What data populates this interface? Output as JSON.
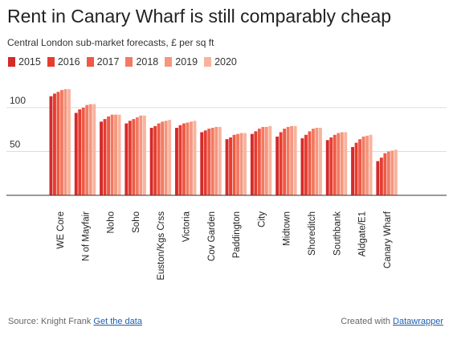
{
  "title": "Rent in Canary Wharf is still comparably cheap",
  "subtitle": "Central London sub-market forecasts, £ per sq ft",
  "legend": [
    {
      "label": "2015",
      "color": "#d42a2a"
    },
    {
      "label": "2016",
      "color": "#e63c30"
    },
    {
      "label": "2017",
      "color": "#ee5a45"
    },
    {
      "label": "2018",
      "color": "#f27a63"
    },
    {
      "label": "2019",
      "color": "#f5977f"
    },
    {
      "label": "2020",
      "color": "#f8b39e"
    }
  ],
  "footer": {
    "source_prefix": "Source: Knight Frank",
    "source_link": "Get the data",
    "credit_prefix": "Created with",
    "credit_link": "Datawrapper"
  },
  "chart_data": {
    "type": "bar",
    "categories": [
      "WE Core",
      "N of Mayfair",
      "Noho",
      "Soho",
      "Euston/Kgs Crss",
      "Victoria",
      "Cov Garden",
      "Paddington",
      "City",
      "Midtown",
      "Shoreditch",
      "Southbank",
      "Aldgate/E1",
      "Canary Wharf"
    ],
    "series": [
      {
        "name": "2015",
        "values": [
          113,
          94,
          84,
          82,
          77,
          77,
          72,
          64,
          70,
          67,
          65,
          63,
          55,
          39
        ]
      },
      {
        "name": "2016",
        "values": [
          116,
          98,
          87,
          85,
          79,
          80,
          74,
          66,
          73,
          72,
          69,
          66,
          60,
          43
        ]
      },
      {
        "name": "2017",
        "values": [
          118,
          100,
          90,
          87,
          82,
          82,
          76,
          69,
          76,
          76,
          73,
          69,
          64,
          48
        ]
      },
      {
        "name": "2018",
        "values": [
          120,
          103,
          92,
          89,
          84,
          83,
          77,
          70,
          78,
          78,
          76,
          71,
          67,
          50
        ]
      },
      {
        "name": "2019",
        "values": [
          121,
          104,
          92,
          91,
          85,
          84,
          78,
          71,
          78,
          79,
          77,
          72,
          68,
          51
        ]
      },
      {
        "name": "2020",
        "values": [
          121,
          104,
          92,
          91,
          86,
          85,
          78,
          71,
          79,
          79,
          77,
          72,
          69,
          52
        ]
      }
    ],
    "yticks": [
      50,
      100
    ],
    "ylim": [
      0,
      140
    ],
    "grid": true,
    "legend_position": "top-left"
  }
}
